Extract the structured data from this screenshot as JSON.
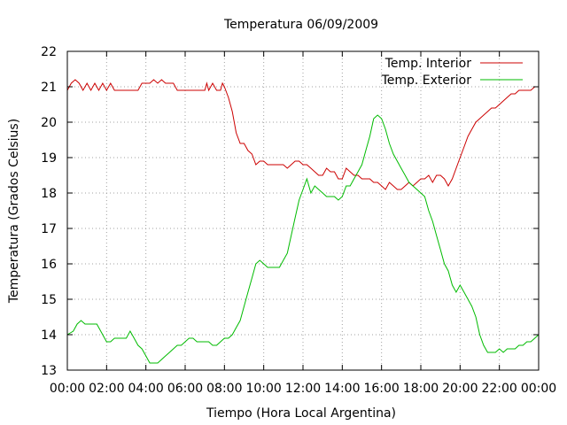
{
  "chart_data": {
    "type": "line",
    "title": "Temperatura 06/09/2009",
    "xlabel": "Tiempo (Hora Local Argentina)",
    "ylabel": "Temperatura (Grados Celsius)",
    "xlim": [
      0,
      24
    ],
    "ylim": [
      13,
      22
    ],
    "x_tick_labels": [
      "00:00",
      "02:00",
      "04:00",
      "06:00",
      "08:00",
      "10:00",
      "12:00",
      "14:00",
      "16:00",
      "18:00",
      "20:00",
      "22:00",
      "00:00"
    ],
    "y_tick_labels": [
      "13",
      "14",
      "15",
      "16",
      "17",
      "18",
      "19",
      "20",
      "21",
      "22"
    ],
    "grid": true,
    "legend_position": "top-right",
    "series": [
      {
        "name": "Temp. Interior",
        "color": "#cc0000",
        "points": [
          [
            0,
            20.9
          ],
          [
            0.2,
            21.1
          ],
          [
            0.4,
            21.2
          ],
          [
            0.6,
            21.1
          ],
          [
            0.8,
            20.9
          ],
          [
            1.0,
            21.1
          ],
          [
            1.2,
            20.9
          ],
          [
            1.4,
            21.1
          ],
          [
            1.6,
            20.9
          ],
          [
            1.8,
            21.1
          ],
          [
            2.0,
            20.9
          ],
          [
            2.2,
            21.1
          ],
          [
            2.4,
            20.9
          ],
          [
            3.0,
            20.9
          ],
          [
            3.6,
            20.9
          ],
          [
            3.8,
            21.1
          ],
          [
            4.2,
            21.1
          ],
          [
            4.4,
            21.2
          ],
          [
            4.6,
            21.1
          ],
          [
            4.8,
            21.2
          ],
          [
            5.0,
            21.1
          ],
          [
            5.2,
            21.1
          ],
          [
            5.4,
            21.1
          ],
          [
            5.6,
            20.9
          ],
          [
            6.5,
            20.9
          ],
          [
            7.0,
            20.9
          ],
          [
            7.1,
            21.1
          ],
          [
            7.2,
            20.9
          ],
          [
            7.4,
            21.1
          ],
          [
            7.6,
            20.9
          ],
          [
            7.8,
            20.9
          ],
          [
            7.9,
            21.1
          ],
          [
            8.0,
            21.0
          ],
          [
            8.2,
            20.7
          ],
          [
            8.4,
            20.3
          ],
          [
            8.6,
            19.7
          ],
          [
            8.8,
            19.4
          ],
          [
            9.0,
            19.4
          ],
          [
            9.2,
            19.2
          ],
          [
            9.4,
            19.1
          ],
          [
            9.6,
            18.8
          ],
          [
            9.8,
            18.9
          ],
          [
            10.0,
            18.9
          ],
          [
            10.2,
            18.8
          ],
          [
            10.4,
            18.8
          ],
          [
            10.6,
            18.8
          ],
          [
            10.8,
            18.8
          ],
          [
            11.0,
            18.8
          ],
          [
            11.2,
            18.7
          ],
          [
            11.4,
            18.8
          ],
          [
            11.6,
            18.9
          ],
          [
            11.8,
            18.9
          ],
          [
            12.0,
            18.8
          ],
          [
            12.2,
            18.8
          ],
          [
            12.4,
            18.7
          ],
          [
            12.6,
            18.6
          ],
          [
            12.8,
            18.5
          ],
          [
            13.0,
            18.5
          ],
          [
            13.2,
            18.7
          ],
          [
            13.4,
            18.6
          ],
          [
            13.6,
            18.6
          ],
          [
            13.8,
            18.4
          ],
          [
            14.0,
            18.4
          ],
          [
            14.2,
            18.7
          ],
          [
            14.4,
            18.6
          ],
          [
            14.6,
            18.5
          ],
          [
            14.8,
            18.5
          ],
          [
            15.0,
            18.4
          ],
          [
            15.2,
            18.4
          ],
          [
            15.4,
            18.4
          ],
          [
            15.6,
            18.3
          ],
          [
            15.8,
            18.3
          ],
          [
            16.0,
            18.2
          ],
          [
            16.2,
            18.1
          ],
          [
            16.4,
            18.3
          ],
          [
            16.6,
            18.2
          ],
          [
            16.8,
            18.1
          ],
          [
            17.0,
            18.1
          ],
          [
            17.2,
            18.2
          ],
          [
            17.4,
            18.3
          ],
          [
            17.6,
            18.2
          ],
          [
            17.8,
            18.3
          ],
          [
            18.0,
            18.4
          ],
          [
            18.2,
            18.4
          ],
          [
            18.4,
            18.5
          ],
          [
            18.6,
            18.3
          ],
          [
            18.8,
            18.5
          ],
          [
            19.0,
            18.5
          ],
          [
            19.2,
            18.4
          ],
          [
            19.4,
            18.2
          ],
          [
            19.6,
            18.4
          ],
          [
            19.8,
            18.7
          ],
          [
            20.0,
            19.0
          ],
          [
            20.2,
            19.3
          ],
          [
            20.4,
            19.6
          ],
          [
            20.6,
            19.8
          ],
          [
            20.8,
            20.0
          ],
          [
            21.0,
            20.1
          ],
          [
            21.2,
            20.2
          ],
          [
            21.4,
            20.3
          ],
          [
            21.6,
            20.4
          ],
          [
            21.8,
            20.4
          ],
          [
            22.0,
            20.5
          ],
          [
            22.2,
            20.6
          ],
          [
            22.4,
            20.7
          ],
          [
            22.6,
            20.8
          ],
          [
            22.8,
            20.8
          ],
          [
            23.0,
            20.9
          ],
          [
            23.2,
            20.9
          ],
          [
            23.4,
            20.9
          ],
          [
            23.6,
            20.9
          ],
          [
            23.8,
            21.0
          ],
          [
            24.0,
            21.0
          ]
        ]
      },
      {
        "name": "Temp. Exterior",
        "color": "#00bb00",
        "points": [
          [
            0,
            14.0
          ],
          [
            0.3,
            14.1
          ],
          [
            0.5,
            14.3
          ],
          [
            0.7,
            14.4
          ],
          [
            0.9,
            14.3
          ],
          [
            1.2,
            14.3
          ],
          [
            1.5,
            14.3
          ],
          [
            1.8,
            14.0
          ],
          [
            2.0,
            13.8
          ],
          [
            2.2,
            13.8
          ],
          [
            2.4,
            13.9
          ],
          [
            2.6,
            13.9
          ],
          [
            3.0,
            13.9
          ],
          [
            3.2,
            14.1
          ],
          [
            3.4,
            13.9
          ],
          [
            3.6,
            13.7
          ],
          [
            3.8,
            13.6
          ],
          [
            4.0,
            13.4
          ],
          [
            4.2,
            13.2
          ],
          [
            4.4,
            13.2
          ],
          [
            4.6,
            13.2
          ],
          [
            4.8,
            13.3
          ],
          [
            5.0,
            13.4
          ],
          [
            5.2,
            13.5
          ],
          [
            5.4,
            13.6
          ],
          [
            5.6,
            13.7
          ],
          [
            5.8,
            13.7
          ],
          [
            6.0,
            13.8
          ],
          [
            6.2,
            13.9
          ],
          [
            6.4,
            13.9
          ],
          [
            6.6,
            13.8
          ],
          [
            6.8,
            13.8
          ],
          [
            7.0,
            13.8
          ],
          [
            7.2,
            13.8
          ],
          [
            7.4,
            13.7
          ],
          [
            7.6,
            13.7
          ],
          [
            7.8,
            13.8
          ],
          [
            8.0,
            13.9
          ],
          [
            8.2,
            13.9
          ],
          [
            8.4,
            14.0
          ],
          [
            8.6,
            14.2
          ],
          [
            8.8,
            14.4
          ],
          [
            9.0,
            14.8
          ],
          [
            9.2,
            15.2
          ],
          [
            9.4,
            15.6
          ],
          [
            9.6,
            16.0
          ],
          [
            9.8,
            16.1
          ],
          [
            10.0,
            16.0
          ],
          [
            10.2,
            15.9
          ],
          [
            10.4,
            15.9
          ],
          [
            10.6,
            15.9
          ],
          [
            10.8,
            15.9
          ],
          [
            11.0,
            16.1
          ],
          [
            11.2,
            16.3
          ],
          [
            11.4,
            16.8
          ],
          [
            11.6,
            17.3
          ],
          [
            11.8,
            17.8
          ],
          [
            12.0,
            18.1
          ],
          [
            12.2,
            18.4
          ],
          [
            12.4,
            18.0
          ],
          [
            12.6,
            18.2
          ],
          [
            12.8,
            18.1
          ],
          [
            13.0,
            18.0
          ],
          [
            13.2,
            17.9
          ],
          [
            13.4,
            17.9
          ],
          [
            13.6,
            17.9
          ],
          [
            13.8,
            17.8
          ],
          [
            14.0,
            17.9
          ],
          [
            14.2,
            18.2
          ],
          [
            14.4,
            18.2
          ],
          [
            14.6,
            18.4
          ],
          [
            14.8,
            18.6
          ],
          [
            15.0,
            18.8
          ],
          [
            15.2,
            19.2
          ],
          [
            15.4,
            19.6
          ],
          [
            15.6,
            20.1
          ],
          [
            15.8,
            20.2
          ],
          [
            16.0,
            20.1
          ],
          [
            16.2,
            19.8
          ],
          [
            16.4,
            19.4
          ],
          [
            16.6,
            19.1
          ],
          [
            16.8,
            18.9
          ],
          [
            17.0,
            18.7
          ],
          [
            17.2,
            18.5
          ],
          [
            17.4,
            18.3
          ],
          [
            17.6,
            18.2
          ],
          [
            17.8,
            18.1
          ],
          [
            18.0,
            18.0
          ],
          [
            18.2,
            17.9
          ],
          [
            18.4,
            17.5
          ],
          [
            18.6,
            17.2
          ],
          [
            18.8,
            16.8
          ],
          [
            19.0,
            16.4
          ],
          [
            19.2,
            16.0
          ],
          [
            19.4,
            15.8
          ],
          [
            19.6,
            15.4
          ],
          [
            19.8,
            15.2
          ],
          [
            20.0,
            15.4
          ],
          [
            20.2,
            15.2
          ],
          [
            20.4,
            15.0
          ],
          [
            20.6,
            14.8
          ],
          [
            20.8,
            14.5
          ],
          [
            21.0,
            14.0
          ],
          [
            21.2,
            13.7
          ],
          [
            21.4,
            13.5
          ],
          [
            21.6,
            13.5
          ],
          [
            21.8,
            13.5
          ],
          [
            22.0,
            13.6
          ],
          [
            22.2,
            13.5
          ],
          [
            22.4,
            13.6
          ],
          [
            22.6,
            13.6
          ],
          [
            22.8,
            13.6
          ],
          [
            23.0,
            13.7
          ],
          [
            23.2,
            13.7
          ],
          [
            23.4,
            13.8
          ],
          [
            23.6,
            13.8
          ],
          [
            23.8,
            13.9
          ],
          [
            24.0,
            14.0
          ]
        ]
      }
    ]
  }
}
